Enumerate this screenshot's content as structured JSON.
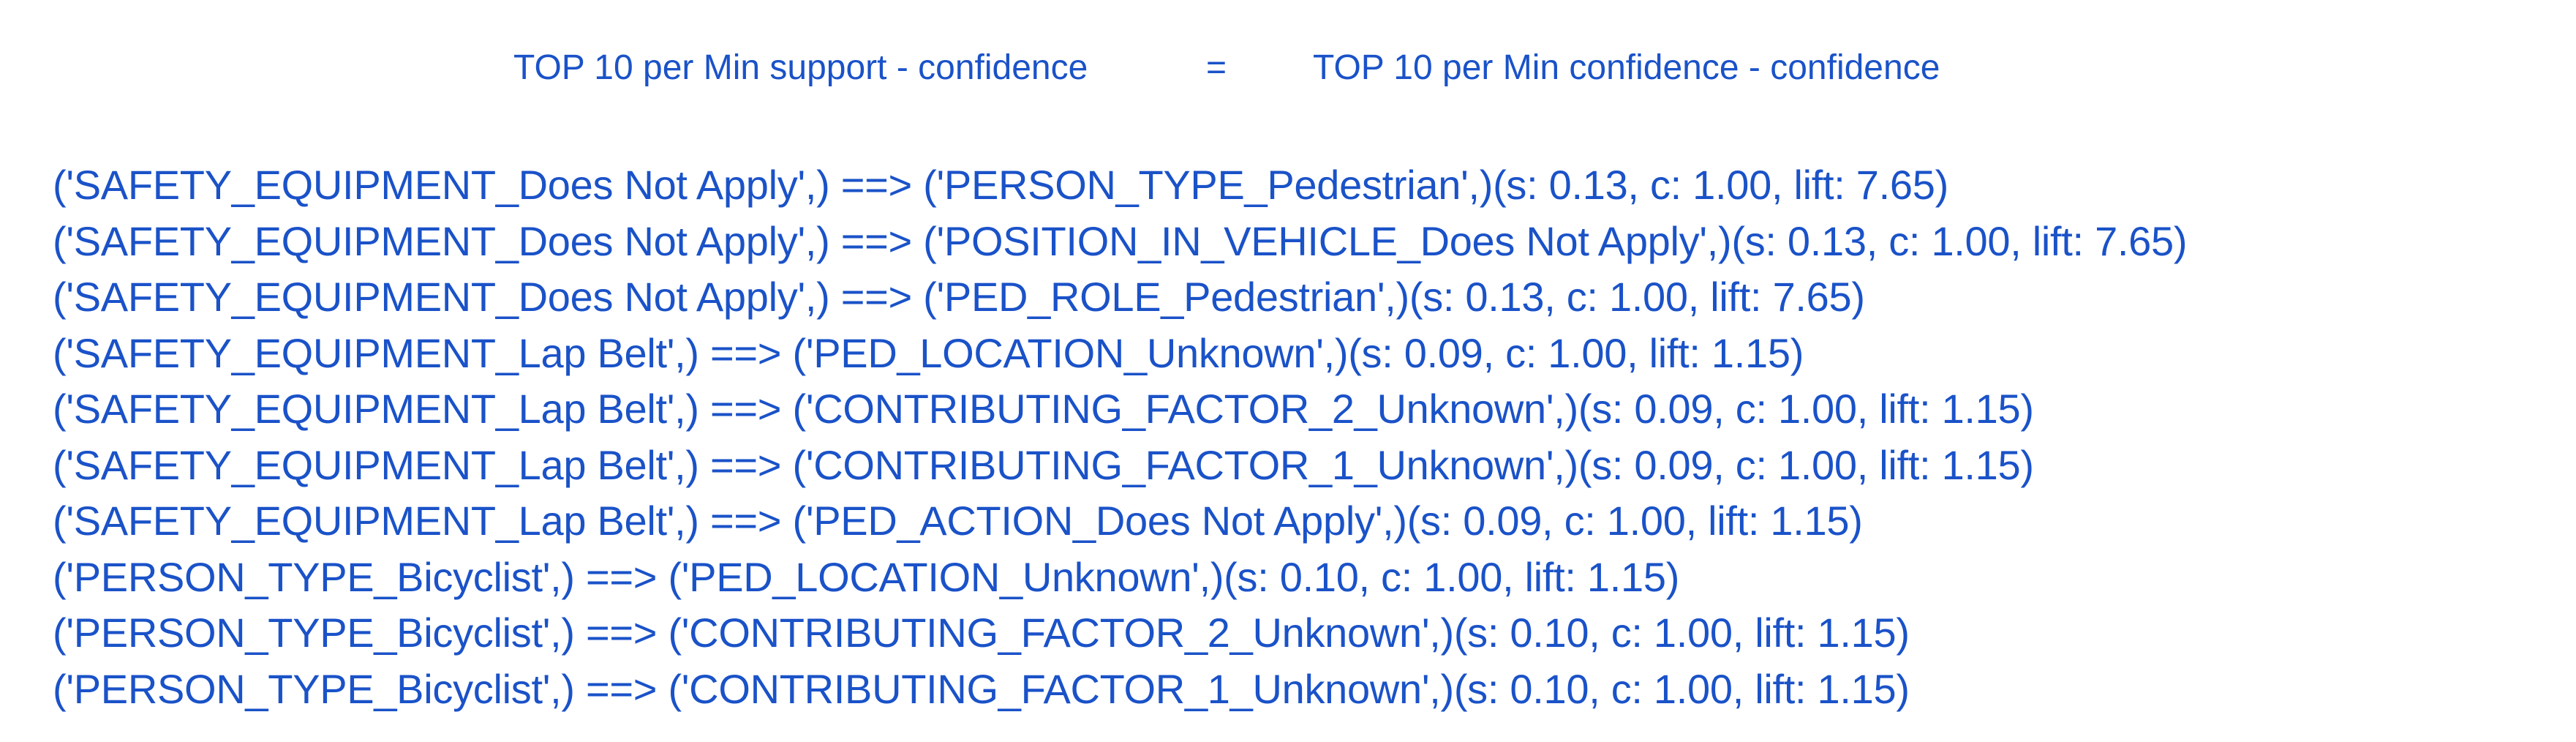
{
  "header": {
    "left": "TOP 10 per Min support - confidence",
    "equals": "=",
    "right": "TOP 10 per Min confidence - confidence"
  },
  "rules": [
    "('SAFETY_EQUIPMENT_Does Not Apply',) ==> ('PERSON_TYPE_Pedestrian',)(s: 0.13, c: 1.00, lift: 7.65)",
    "('SAFETY_EQUIPMENT_Does Not Apply',) ==> ('POSITION_IN_VEHICLE_Does Not Apply',)(s: 0.13, c: 1.00, lift: 7.65)",
    "('SAFETY_EQUIPMENT_Does Not Apply',) ==> ('PED_ROLE_Pedestrian',)(s: 0.13, c: 1.00, lift: 7.65)",
    "('SAFETY_EQUIPMENT_Lap Belt',) ==> ('PED_LOCATION_Unknown',)(s: 0.09, c: 1.00, lift: 1.15)",
    "('SAFETY_EQUIPMENT_Lap Belt',) ==> ('CONTRIBUTING_FACTOR_2_Unknown',)(s: 0.09, c: 1.00, lift: 1.15)",
    "('SAFETY_EQUIPMENT_Lap Belt',) ==> ('CONTRIBUTING_FACTOR_1_Unknown',)(s: 0.09, c: 1.00, lift: 1.15)",
    "('SAFETY_EQUIPMENT_Lap Belt',) ==> ('PED_ACTION_Does Not Apply',)(s: 0.09, c: 1.00, lift: 1.15)",
    "('PERSON_TYPE_Bicyclist',) ==> ('PED_LOCATION_Unknown',)(s: 0.10, c: 1.00, lift: 1.15)",
    "('PERSON_TYPE_Bicyclist',) ==> ('CONTRIBUTING_FACTOR_2_Unknown',)(s: 0.10, c: 1.00, lift: 1.15)",
    "('PERSON_TYPE_Bicyclist',) ==> ('CONTRIBUTING_FACTOR_1_Unknown',)(s: 0.10, c: 1.00, lift: 1.15)"
  ],
  "colors": {
    "text": "#1a52c8",
    "background": "#ffffff"
  }
}
